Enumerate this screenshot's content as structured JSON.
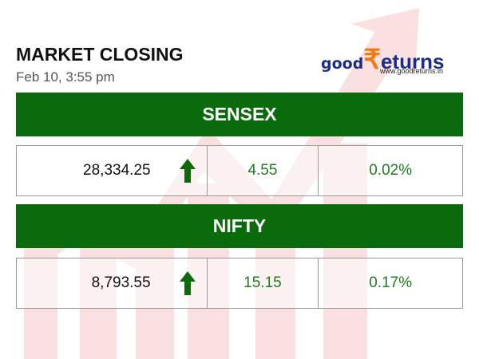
{
  "header": {
    "title": "MARKET CLOSING",
    "timestamp": "Feb 10, 3:55 pm",
    "logo": {
      "brand_a": "good",
      "symbol": "₹",
      "brand_b": "eturns",
      "url": "www.goodreturns.in"
    }
  },
  "indices": [
    {
      "name": "SENSEX",
      "value": "28,334.25",
      "change": "4.55",
      "percent": "0.02%"
    },
    {
      "name": "NIFTY",
      "value": "8,793.55",
      "change": "15.15",
      "percent": "0.17%"
    }
  ]
}
